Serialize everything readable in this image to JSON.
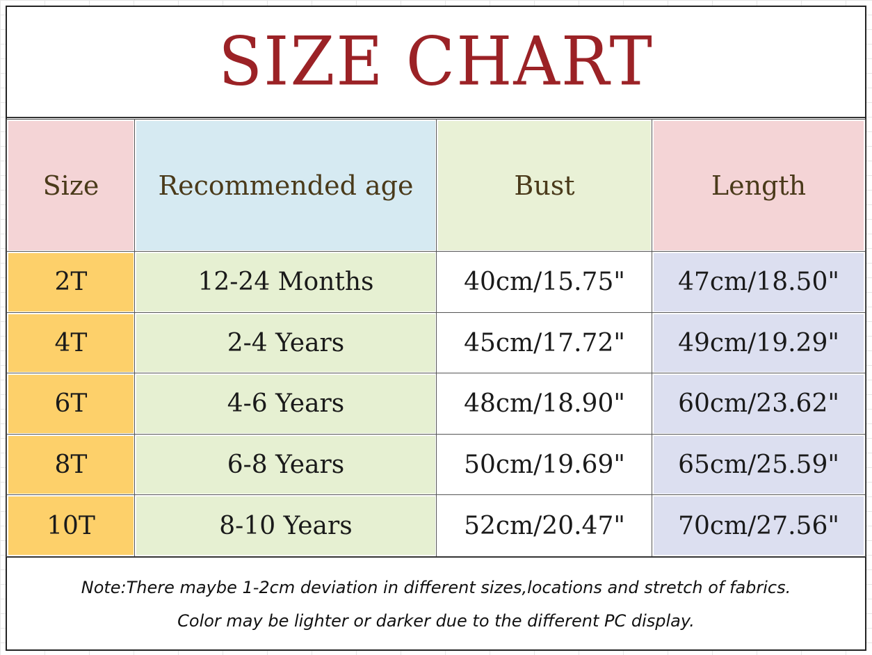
{
  "title": "SIZE CHART",
  "headers": {
    "size": "Size",
    "age": "Recommended age",
    "bust": "Bust",
    "length": "Length"
  },
  "rows": [
    {
      "size": "2T",
      "age": "12-24 Months",
      "bust": "40cm/15.75\"",
      "length": "47cm/18.50\""
    },
    {
      "size": "4T",
      "age": "2-4 Years",
      "bust": "45cm/17.72\"",
      "length": "49cm/19.29\""
    },
    {
      "size": "6T",
      "age": "4-6 Years",
      "bust": "48cm/18.90\"",
      "length": "60cm/23.62\""
    },
    {
      "size": "8T",
      "age": "6-8 Years",
      "bust": "50cm/19.69\"",
      "length": "65cm/25.59\""
    },
    {
      "size": "10T",
      "age": "8-10 Years",
      "bust": "52cm/20.47\"",
      "length": "70cm/27.56\""
    }
  ],
  "note": {
    "line1": "Note:There maybe 1-2cm deviation in different sizes,locations and stretch of fabrics.",
    "line2": "Color may be lighter or darker due to the different PC display."
  },
  "colors": {
    "title": "#9b2226",
    "size_header": "#f4d4d6",
    "age_header": "#d6eaf2",
    "bust_header": "#e9f1d6",
    "length_header": "#f4d4d6",
    "size_col": "#fdd06a",
    "age_col": "#e6f0d2",
    "bust_col": "#ffffff",
    "length_col": "#dcdff0"
  }
}
